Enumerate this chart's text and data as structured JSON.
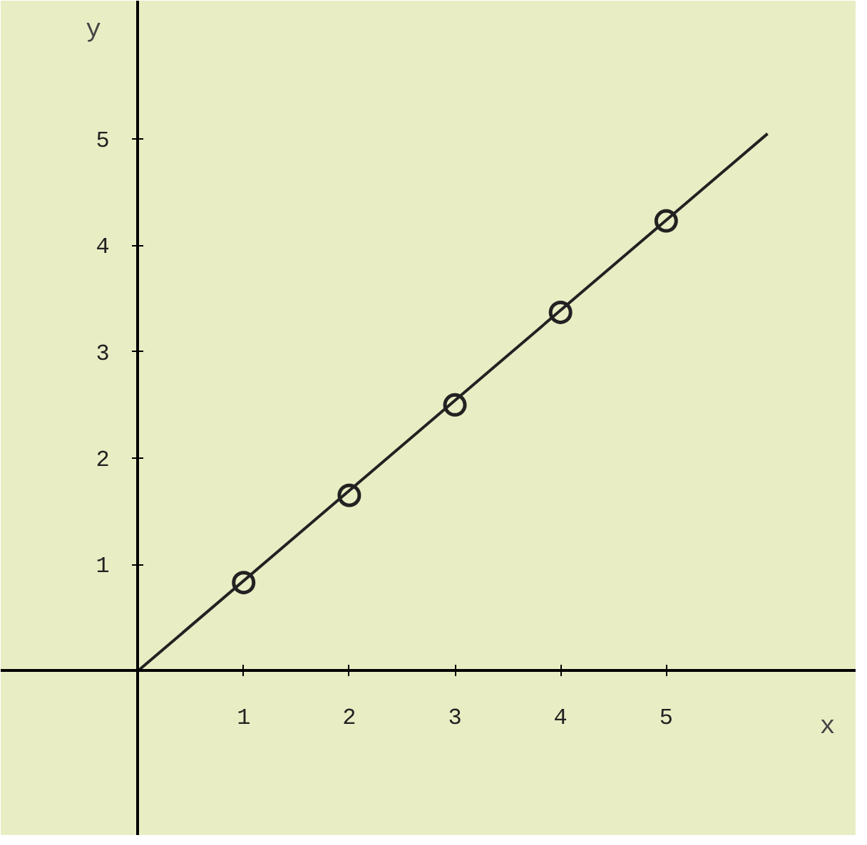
{
  "chart_data": {
    "type": "scatter",
    "xlabel": "x",
    "ylabel": "y",
    "xlim": [
      -1.3,
      6.8
    ],
    "ylim": [
      -1.55,
      6.3
    ],
    "xticks": [
      1,
      2,
      3,
      4,
      5
    ],
    "yticks": [
      1,
      2,
      3,
      4,
      5
    ],
    "grid": false,
    "marker": "circle",
    "series": [
      {
        "color": "#222222",
        "x": [
          1,
          2,
          3,
          4,
          5
        ],
        "values": [
          0.83,
          1.65,
          2.5,
          3.37,
          4.23
        ]
      },
      {
        "type": "line",
        "marker": "none",
        "color": "#222222",
        "x": [
          0,
          5.96
        ],
        "values": [
          0,
          5.05
        ]
      }
    ]
  }
}
